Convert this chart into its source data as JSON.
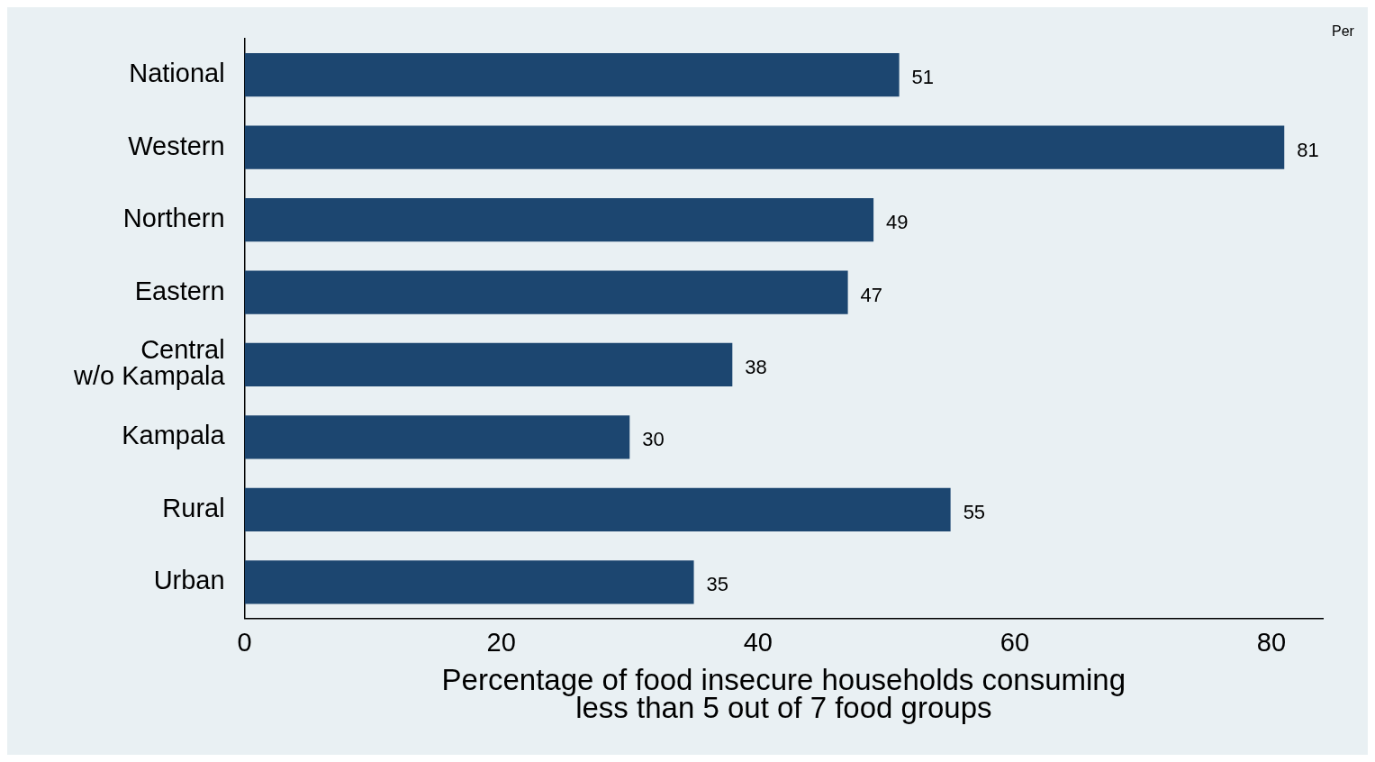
{
  "chart_data": {
    "type": "bar",
    "orientation": "horizontal",
    "categories": [
      "National",
      "Western",
      "Northern",
      "Eastern",
      "Central\nw/o Kampala",
      "Kampala",
      "Rural",
      "Urban"
    ],
    "values": [
      51,
      81,
      49,
      47,
      38,
      30,
      55,
      35
    ],
    "color": "#1c4670",
    "xlabel": "Percentage of food insecure households consuming\nless than 5 out of 7 food groups",
    "xlim": [
      0,
      84
    ],
    "xticks": [
      0,
      20,
      40,
      60,
      80
    ],
    "data_labels": true,
    "grid": false,
    "legend": false,
    "annotations": [
      "Per"
    ]
  }
}
